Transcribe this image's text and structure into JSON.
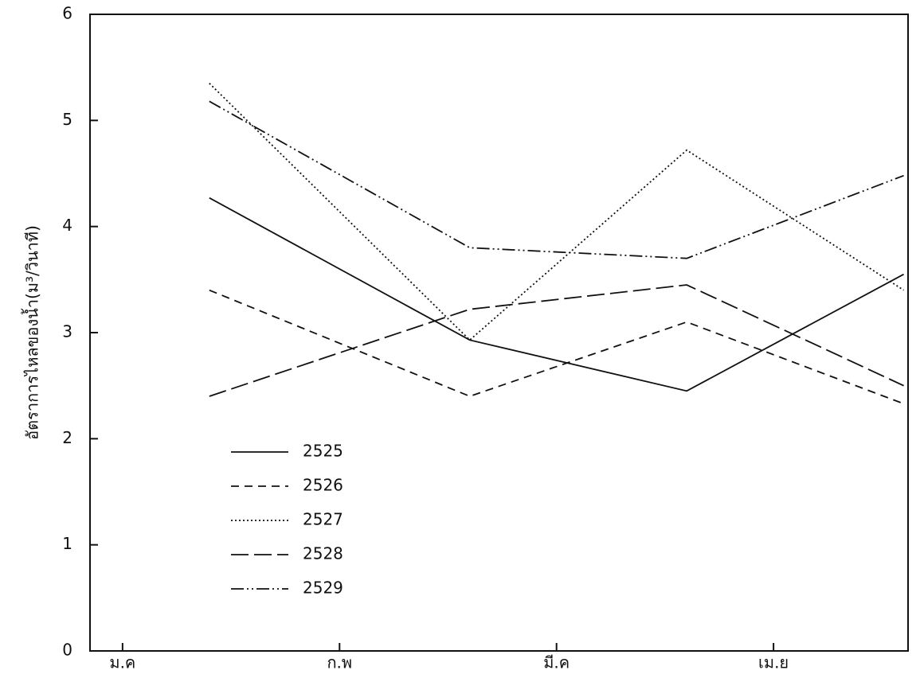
{
  "chart_data": {
    "type": "line",
    "y_label": "อัตราการไหลของน้ำ(ม³/วินาที)",
    "x": [
      1.4,
      2.6,
      3.6,
      4.6
    ],
    "xlim": [
      0.85,
      4.62
    ],
    "xticks": [
      {
        "value": 1,
        "label": "ม.ค"
      },
      {
        "value": 2,
        "label": "ก.พ"
      },
      {
        "value": 3,
        "label": "มี.ค"
      },
      {
        "value": 4,
        "label": "เม.ย"
      }
    ],
    "ylim": [
      0,
      6
    ],
    "yticks": [
      0,
      1,
      2,
      3,
      4,
      5,
      6
    ],
    "legend": "lower-left",
    "series": [
      {
        "name": "2525",
        "color": "#111111",
        "style": "solid",
        "values": [
          4.27,
          2.93,
          2.45,
          3.55
        ]
      },
      {
        "name": "2526",
        "color": "#111111",
        "style": "dashed",
        "values": [
          3.4,
          2.4,
          3.1,
          2.33
        ]
      },
      {
        "name": "2527",
        "color": "#111111",
        "style": "dotted",
        "values": [
          5.35,
          2.93,
          4.72,
          3.4
        ]
      },
      {
        "name": "2528",
        "color": "#111111",
        "style": "longdash",
        "values": [
          2.4,
          3.22,
          3.45,
          2.5
        ]
      },
      {
        "name": "2529",
        "color": "#111111",
        "style": "dashdotdot",
        "values": [
          5.18,
          3.8,
          3.7,
          4.48
        ]
      }
    ]
  }
}
